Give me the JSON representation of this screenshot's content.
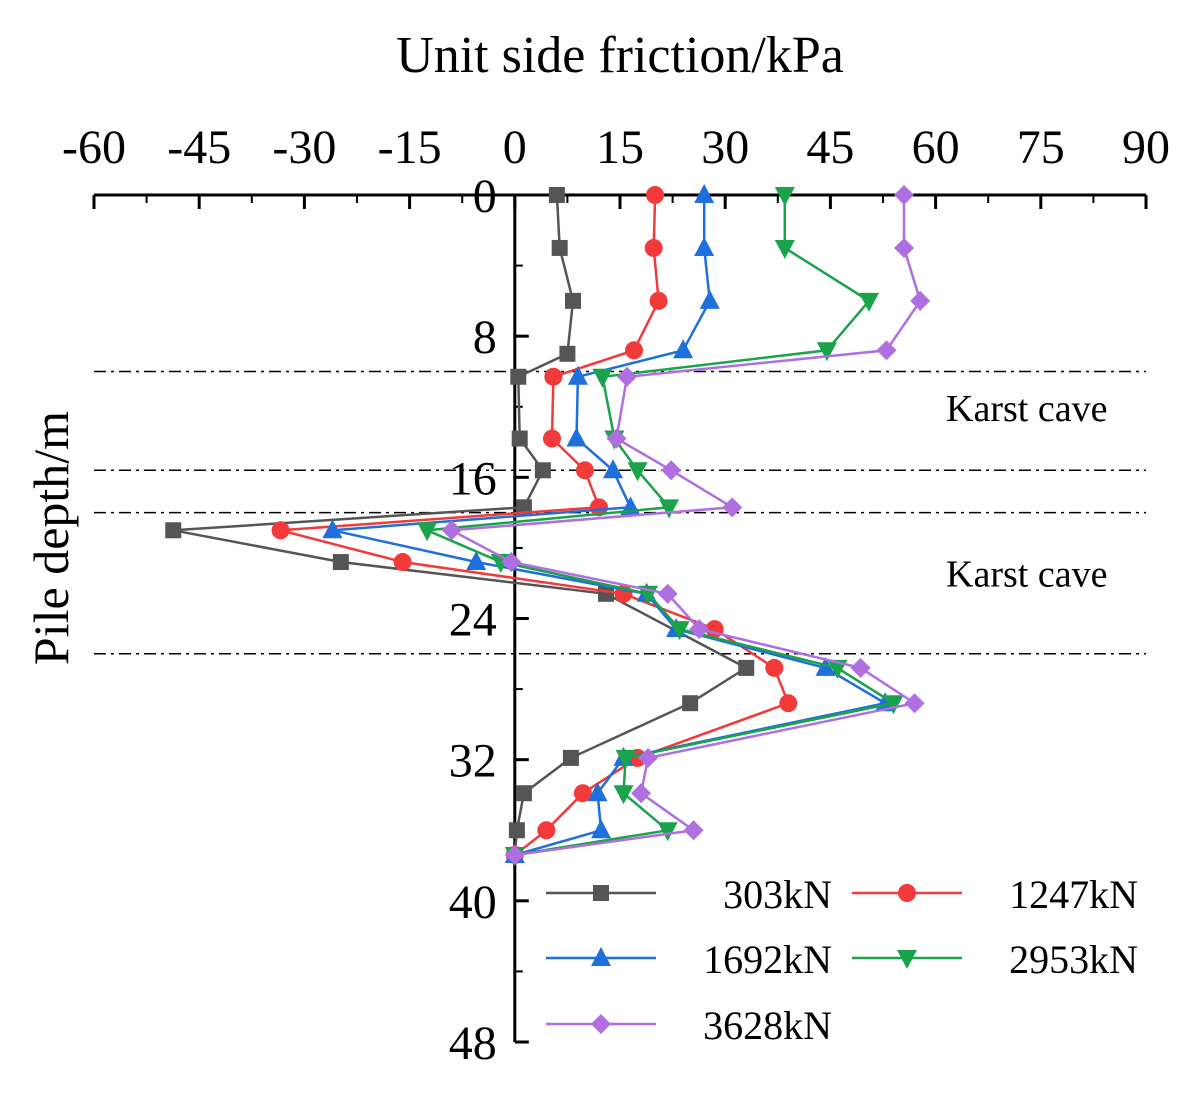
{
  "chart_data": {
    "type": "line",
    "xlabel": "Unit side friction/kPa",
    "ylabel": "Pile depth/m",
    "xlim": [
      -60,
      90
    ],
    "ylim": [
      0,
      48
    ],
    "y_inverted": true,
    "x_axis_position": "top",
    "xticks": [
      -60,
      -45,
      -30,
      -15,
      0,
      15,
      30,
      45,
      60,
      75,
      90
    ],
    "yticks": [
      0,
      8,
      16,
      24,
      32,
      40,
      48
    ],
    "xticklabels": [
      "-60",
      "-45",
      "-30",
      "-15",
      "0",
      "15",
      "30",
      "45",
      "60",
      "75",
      "90"
    ],
    "yticklabels": [
      "0",
      "8",
      "16",
      "24",
      "32",
      "40",
      "48"
    ],
    "grid": false,
    "legend_position": "bottom-right",
    "annotations": [
      {
        "text": "Karst cave",
        "x": 73,
        "y": 12.8
      },
      {
        "text": "Karst cave",
        "x": 73,
        "y": 22.2
      }
    ],
    "reference_lines_depth": [
      10.0,
      15.6,
      18.0,
      26.0
    ],
    "series": [
      {
        "name": "303kN",
        "color": "#555555",
        "marker": "square",
        "x": [
          6,
          6,
          6.4,
          6.4,
          8.3,
          8.3,
          7.5,
          7.5,
          0.5,
          0.5,
          0.7,
          0.7,
          4,
          4,
          1.3,
          1.3,
          -48.7,
          -48.7,
          -24.8,
          -24.8,
          13,
          13,
          33,
          33,
          25,
          25,
          8,
          8,
          1.3,
          1.3,
          0.3,
          0.3,
          0,
          0
        ],
        "y": [
          0,
          0,
          3,
          3,
          6,
          6,
          9,
          9,
          10.3,
          10.3,
          13.8,
          13.8,
          15.6,
          15.6,
          17.7,
          17.7,
          19.0,
          19.0,
          20.8,
          20.8,
          22.6,
          22.6,
          26.8,
          26.8,
          28.8,
          28.8,
          31.9,
          31.9,
          33.9,
          33.9,
          36.0,
          36.0,
          37.4,
          37.4
        ]
      },
      {
        "name": "1247kN",
        "color": "#f23a3a",
        "marker": "circle",
        "x": [
          20,
          20,
          19.8,
          19.8,
          20.5,
          20.5,
          17,
          17,
          5.5,
          5.5,
          5.3,
          5.3,
          10,
          10,
          12,
          12,
          -33.4,
          -33.4,
          -16,
          -16,
          15.5,
          15.5,
          28.5,
          28.5,
          37,
          37,
          39,
          39,
          17.5,
          17.5,
          9.7,
          9.7,
          4.5,
          4.5,
          0,
          0
        ],
        "y": [
          0,
          0,
          3,
          3,
          6,
          6,
          8.8,
          8.8,
          10.3,
          10.3,
          13.8,
          13.8,
          15.6,
          15.6,
          17.7,
          17.7,
          19.0,
          19.0,
          20.8,
          20.8,
          22.6,
          22.6,
          24.6,
          24.6,
          26.8,
          26.8,
          28.8,
          28.8,
          31.9,
          31.9,
          33.9,
          33.9,
          36.0,
          36.0,
          37.4,
          37.4
        ]
      },
      {
        "name": "1692kN",
        "color": "#1f6fdc",
        "marker": "triangle-up",
        "x": [
          27,
          27,
          27,
          27,
          27.8,
          27.8,
          24,
          24,
          9,
          9,
          8.8,
          8.8,
          14,
          14,
          16.5,
          16.5,
          -26,
          -26,
          -5.5,
          -5.5,
          18.8,
          18.8,
          23,
          23,
          44.3,
          44.3,
          52.8,
          52.8,
          15.5,
          15.5,
          11.8,
          11.8,
          12.3,
          12.3,
          0,
          0
        ],
        "y": [
          0,
          0,
          3,
          3,
          6,
          6,
          8.8,
          8.8,
          10.3,
          10.3,
          13.8,
          13.8,
          15.6,
          15.6,
          17.7,
          17.7,
          19.0,
          19.0,
          20.8,
          20.8,
          22.6,
          22.6,
          24.6,
          24.6,
          26.8,
          26.8,
          28.8,
          28.8,
          31.9,
          31.9,
          33.9,
          33.9,
          36.0,
          36.0,
          37.4,
          37.4
        ]
      },
      {
        "name": "2953kN",
        "color": "#1aa34a",
        "marker": "triangle-down",
        "x": [
          38.5,
          38.5,
          38.5,
          38.5,
          50.5,
          50.5,
          44.5,
          44.5,
          12.5,
          12.5,
          14.2,
          14.2,
          17.5,
          17.5,
          22,
          22,
          -12.5,
          -12.5,
          -2,
          -2,
          19,
          19,
          23.5,
          23.5,
          46,
          46,
          54,
          54,
          15.8,
          15.8,
          15.5,
          15.5,
          21.8,
          21.8,
          0,
          0
        ],
        "y": [
          0,
          0,
          3,
          3,
          6,
          6,
          8.8,
          8.8,
          10.3,
          10.3,
          13.8,
          13.8,
          15.6,
          15.6,
          17.7,
          17.7,
          19.0,
          19.0,
          20.8,
          20.8,
          22.6,
          22.6,
          24.6,
          24.6,
          26.8,
          26.8,
          28.8,
          28.8,
          31.9,
          31.9,
          33.9,
          33.9,
          36.0,
          36.0,
          37.4,
          37.4
        ]
      },
      {
        "name": "3628kN",
        "color": "#b06fe0",
        "marker": "diamond",
        "x": [
          55.5,
          55.5,
          55.5,
          55.5,
          57.8,
          57.8,
          53,
          53,
          16,
          16,
          14.5,
          14.5,
          22.3,
          22.3,
          31,
          31,
          -9,
          -9,
          -0.5,
          -0.5,
          21.8,
          21.8,
          26.3,
          26.3,
          49.3,
          49.3,
          57,
          57,
          19,
          19,
          18,
          18,
          25.5,
          25.5,
          0,
          0
        ],
        "y": [
          0,
          0,
          3,
          3,
          6,
          6,
          8.8,
          8.8,
          10.3,
          10.3,
          13.8,
          13.8,
          15.6,
          15.6,
          17.7,
          17.7,
          19.0,
          19.0,
          20.8,
          20.8,
          22.6,
          22.6,
          24.6,
          24.6,
          26.8,
          26.8,
          28.8,
          28.8,
          31.9,
          31.9,
          33.9,
          33.9,
          36.0,
          36.0,
          37.4,
          37.4
        ]
      }
    ]
  }
}
